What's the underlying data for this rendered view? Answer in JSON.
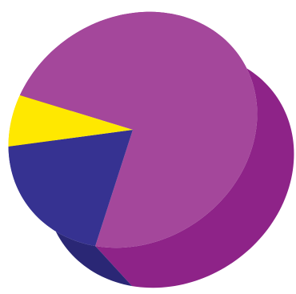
{
  "chart_data": {
    "type": "pie",
    "style": "3d",
    "title": "",
    "slices": [
      {
        "value": 73,
        "color": "#A4479B",
        "side_color": "#8E2388"
      },
      {
        "value": 20,
        "color": "#363291",
        "side_color": "#2A2775"
      },
      {
        "value": 7,
        "color": "#FFE800",
        "side_color": "#F0C31E"
      }
    ],
    "legend": "none",
    "data_labels": "none"
  }
}
